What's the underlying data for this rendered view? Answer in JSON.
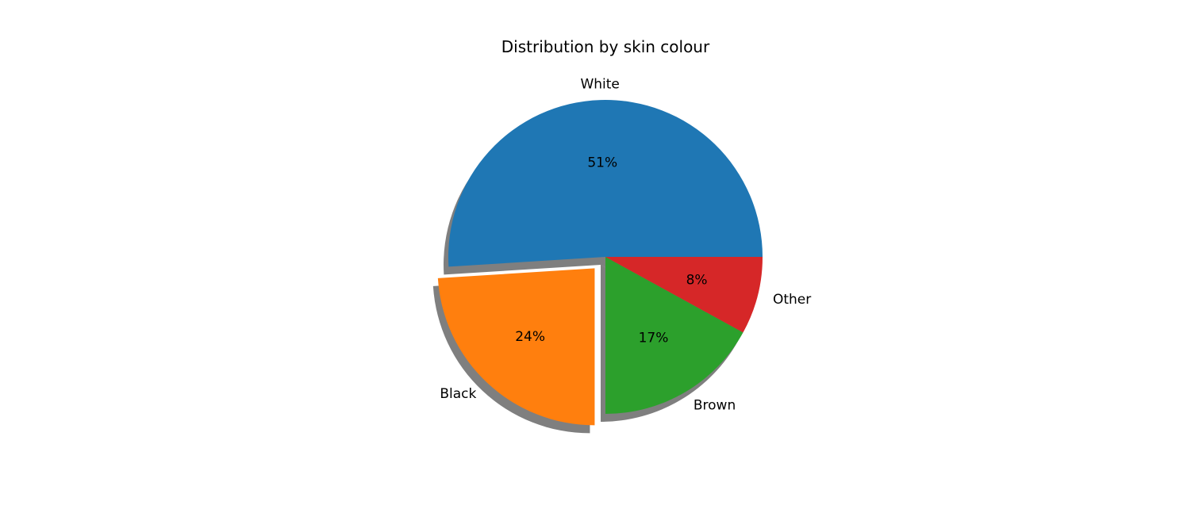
{
  "chart_data": {
    "type": "pie",
    "title": "Distribution by skin colour",
    "labels": [
      "White",
      "Black",
      "Brown",
      "Other"
    ],
    "values": [
      51,
      24,
      17,
      8
    ],
    "autopct": [
      "51%",
      "24%",
      "17%",
      "8%"
    ],
    "colors": [
      "#1f77b4",
      "#ff7f0e",
      "#2ca02c",
      "#d62728"
    ],
    "explode": [
      0,
      0.1,
      0,
      0
    ],
    "shadow": true,
    "start_angle": 0,
    "direction": "counterclockwise"
  }
}
